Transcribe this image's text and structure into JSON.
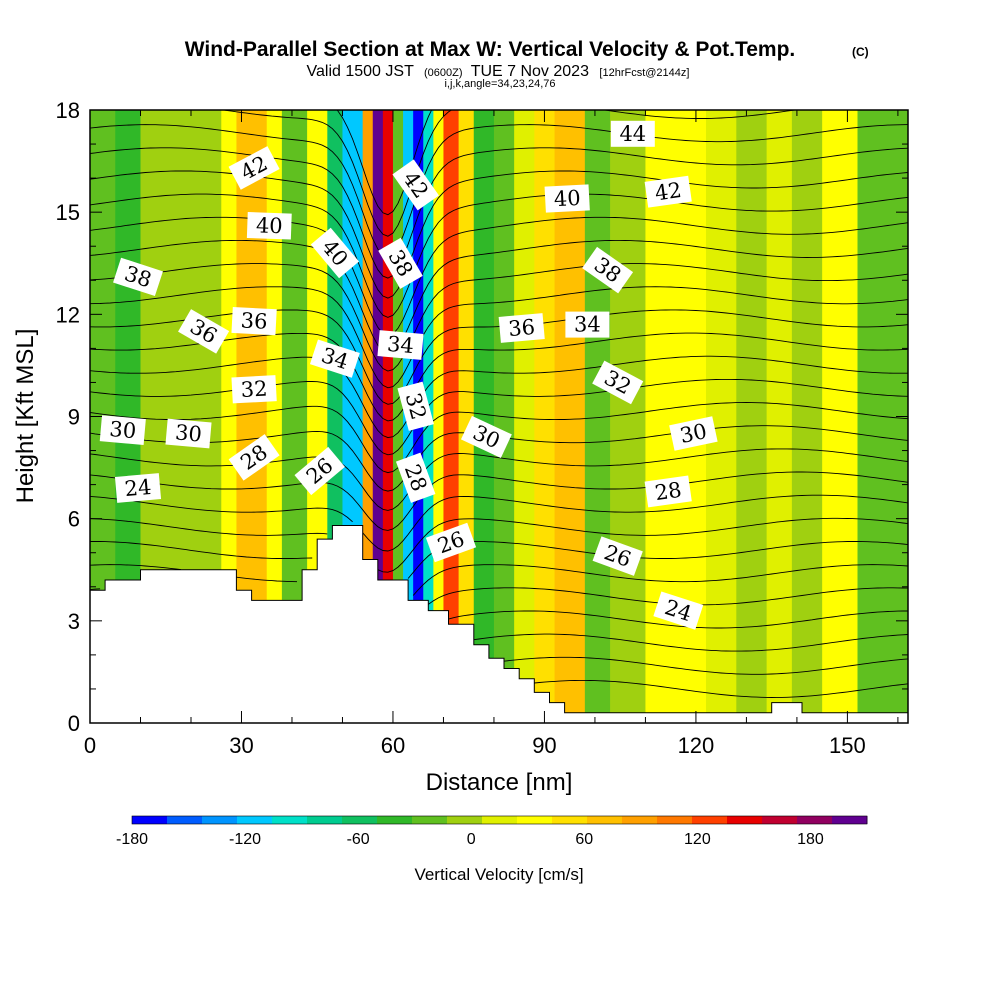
{
  "title": {
    "main": "Wind-Parallel Section at Max W: Vertical Velocity & Pot.Temp.",
    "copyright": "(C)",
    "valid_prefix": "Valid 1500 JST",
    "valid_utc": "(0600Z)",
    "valid_date": "TUE 7 Nov 2023",
    "fcst": "[12hrFcst@2144z]",
    "params": "i,j,k,angle=34,23,24,76"
  },
  "chart_data": {
    "type": "heatmap",
    "xlabel": "Distance [nm]",
    "ylabel": "Height [Kft MSL]",
    "xlim": [
      0,
      162
    ],
    "ylim": [
      0,
      18
    ],
    "x_ticks": [
      0,
      30,
      60,
      90,
      120,
      150
    ],
    "y_ticks": [
      0,
      3,
      6,
      9,
      12,
      15,
      18
    ],
    "colorbar": {
      "title": "Vertical Velocity [cm/s]",
      "range": [
        -180,
        210
      ],
      "tick_values": [
        -180,
        -120,
        -60,
        0,
        60,
        120,
        180
      ],
      "colors": [
        "#0000ff",
        "#005cff",
        "#0094ff",
        "#00c8ff",
        "#00e0c8",
        "#00cc90",
        "#10c060",
        "#30b828",
        "#60c020",
        "#a0d010",
        "#e0f000",
        "#ffff00",
        "#ffe000",
        "#ffc000",
        "#ffa000",
        "#ff7800",
        "#ff4000",
        "#e80000",
        "#c00030",
        "#900060",
        "#600090"
      ]
    },
    "vertical_velocity_bands": [
      {
        "x_from": 0,
        "x_to": 5,
        "w": -20
      },
      {
        "x_from": 5,
        "x_to": 10,
        "w": -40
      },
      {
        "x_from": 10,
        "x_to": 16,
        "w": -10
      },
      {
        "x_from": 16,
        "x_to": 20,
        "w": 5
      },
      {
        "x_from": 20,
        "x_to": 26,
        "w": -10
      },
      {
        "x_from": 26,
        "x_to": 29,
        "w": 40
      },
      {
        "x_from": 29,
        "x_to": 35,
        "w": 80
      },
      {
        "x_from": 35,
        "x_to": 38,
        "w": 30
      },
      {
        "x_from": 38,
        "x_to": 43,
        "w": -30
      },
      {
        "x_from": 43,
        "x_to": 47,
        "w": 30
      },
      {
        "x_from": 47,
        "x_to": 50,
        "w": -60
      },
      {
        "x_from": 50,
        "x_to": 54,
        "w": -110
      },
      {
        "x_from": 54,
        "x_to": 56,
        "w": 90
      },
      {
        "x_from": 56,
        "x_to": 58,
        "w": 200
      },
      {
        "x_from": 58,
        "x_to": 60,
        "w": 150
      },
      {
        "x_from": 60,
        "x_to": 62,
        "w": -20
      },
      {
        "x_from": 62,
        "x_to": 64,
        "w": -120
      },
      {
        "x_from": 64,
        "x_to": 66,
        "w": -180
      },
      {
        "x_from": 66,
        "x_to": 68,
        "w": -100
      },
      {
        "x_from": 68,
        "x_to": 70,
        "w": 40
      },
      {
        "x_from": 70,
        "x_to": 73,
        "w": 130
      },
      {
        "x_from": 73,
        "x_to": 76,
        "w": 60
      },
      {
        "x_from": 76,
        "x_to": 80,
        "w": -40
      },
      {
        "x_from": 80,
        "x_to": 84,
        "w": -20
      },
      {
        "x_from": 84,
        "x_to": 88,
        "w": 10
      },
      {
        "x_from": 88,
        "x_to": 92,
        "w": 50
      },
      {
        "x_from": 92,
        "x_to": 98,
        "w": 80
      },
      {
        "x_from": 98,
        "x_to": 103,
        "w": -30
      },
      {
        "x_from": 103,
        "x_to": 110,
        "w": -10
      },
      {
        "x_from": 110,
        "x_to": 122,
        "w": 35
      },
      {
        "x_from": 122,
        "x_to": 128,
        "w": 15
      },
      {
        "x_from": 128,
        "x_to": 134,
        "w": -5
      },
      {
        "x_from": 134,
        "x_to": 139,
        "w": 20
      },
      {
        "x_from": 139,
        "x_to": 145,
        "w": -10
      },
      {
        "x_from": 145,
        "x_to": 152,
        "w": 25
      },
      {
        "x_from": 152,
        "x_to": 162,
        "w": -15
      }
    ],
    "terrain": [
      [
        0,
        3.9
      ],
      [
        3,
        3.9
      ],
      [
        3,
        4.2
      ],
      [
        10,
        4.2
      ],
      [
        10,
        4.5
      ],
      [
        29,
        4.5
      ],
      [
        29,
        3.9
      ],
      [
        32,
        3.9
      ],
      [
        32,
        3.6
      ],
      [
        42,
        3.6
      ],
      [
        42,
        4.5
      ],
      [
        45,
        4.5
      ],
      [
        45,
        5.4
      ],
      [
        48,
        5.4
      ],
      [
        48,
        5.8
      ],
      [
        54,
        5.8
      ],
      [
        54,
        4.8
      ],
      [
        57,
        4.8
      ],
      [
        57,
        4.2
      ],
      [
        63,
        4.2
      ],
      [
        63,
        3.6
      ],
      [
        67,
        3.6
      ],
      [
        67,
        3.3
      ],
      [
        71,
        3.3
      ],
      [
        71,
        2.9
      ],
      [
        76,
        2.9
      ],
      [
        76,
        2.3
      ],
      [
        79,
        2.3
      ],
      [
        79,
        1.9
      ],
      [
        82,
        1.9
      ],
      [
        82,
        1.6
      ],
      [
        85,
        1.6
      ],
      [
        85,
        1.3
      ],
      [
        88,
        1.3
      ],
      [
        88,
        0.9
      ],
      [
        91,
        0.9
      ],
      [
        91,
        0.6
      ],
      [
        94,
        0.6
      ],
      [
        94,
        0.3
      ],
      [
        135,
        0.3
      ],
      [
        135,
        0.6
      ],
      [
        141,
        0.6
      ],
      [
        141,
        0.3
      ],
      [
        162,
        0.3
      ]
    ],
    "theta_contours": {
      "interval": 1,
      "min": 20,
      "max": 46,
      "labels": [
        {
          "x": 9.5,
          "y": 6.9,
          "text": "24",
          "rot": -5
        },
        {
          "x": 6.5,
          "y": 8.6,
          "text": "30",
          "rot": 5
        },
        {
          "x": 19.5,
          "y": 8.5,
          "text": "30",
          "rot": 5
        },
        {
          "x": 32.5,
          "y": 9.8,
          "text": "32",
          "rot": -3
        },
        {
          "x": 32.5,
          "y": 11.8,
          "text": "36",
          "rot": 3
        },
        {
          "x": 22.5,
          "y": 11.5,
          "text": "36",
          "rot": 30
        },
        {
          "x": 9.5,
          "y": 13.1,
          "text": "38",
          "rot": 18
        },
        {
          "x": 35.5,
          "y": 14.6,
          "text": "40",
          "rot": 2
        },
        {
          "x": 32.5,
          "y": 16.3,
          "text": "42",
          "rot": -28
        },
        {
          "x": 32.5,
          "y": 7.8,
          "text": "28",
          "rot": -35
        },
        {
          "x": 45.5,
          "y": 7.4,
          "text": "26",
          "rot": -40
        },
        {
          "x": 48.5,
          "y": 10.7,
          "text": "34",
          "rot": 18
        },
        {
          "x": 48.5,
          "y": 13.8,
          "text": "40",
          "rot": 50
        },
        {
          "x": 64.5,
          "y": 15.8,
          "text": "42",
          "rot": 55
        },
        {
          "x": 61.5,
          "y": 13.5,
          "text": "38",
          "rot": 60
        },
        {
          "x": 61.5,
          "y": 11.1,
          "text": "34",
          "rot": 5
        },
        {
          "x": 64.5,
          "y": 9.3,
          "text": "32",
          "rot": 75
        },
        {
          "x": 64.5,
          "y": 7.2,
          "text": "28",
          "rot": 70
        },
        {
          "x": 71.5,
          "y": 5.3,
          "text": "26",
          "rot": -20
        },
        {
          "x": 78.5,
          "y": 8.4,
          "text": "30",
          "rot": 25
        },
        {
          "x": 85.5,
          "y": 11.6,
          "text": "36",
          "rot": -5
        },
        {
          "x": 98.5,
          "y": 11.7,
          "text": "34",
          "rot": 0
        },
        {
          "x": 94.5,
          "y": 15.4,
          "text": "40",
          "rot": -3
        },
        {
          "x": 102.5,
          "y": 13.3,
          "text": "38",
          "rot": 35
        },
        {
          "x": 104.5,
          "y": 10.0,
          "text": "32",
          "rot": 28
        },
        {
          "x": 107.5,
          "y": 17.3,
          "text": "44",
          "rot": 0
        },
        {
          "x": 114.5,
          "y": 15.6,
          "text": "42",
          "rot": -8
        },
        {
          "x": 119.5,
          "y": 8.5,
          "text": "30",
          "rot": -12
        },
        {
          "x": 114.5,
          "y": 6.8,
          "text": "28",
          "rot": -8
        },
        {
          "x": 104.5,
          "y": 4.9,
          "text": "26",
          "rot": 20
        },
        {
          "x": 116.5,
          "y": 3.3,
          "text": "24",
          "rot": 18
        }
      ]
    }
  }
}
